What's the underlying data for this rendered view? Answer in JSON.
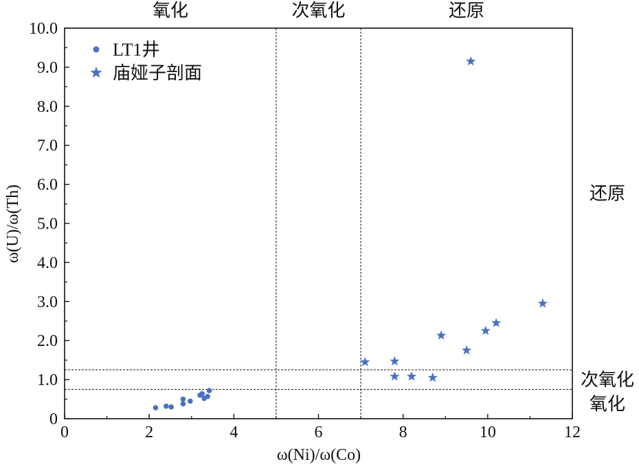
{
  "chart_data": {
    "type": "scatter",
    "xlabel": "ω(Ni)/ω(Co)",
    "ylabel": "ω(U)/ω(Th)",
    "xlim": [
      0,
      12
    ],
    "ylim": [
      0,
      10
    ],
    "x_ticks": [
      0,
      2,
      4,
      6,
      8,
      10,
      12
    ],
    "x_tick_labels": [
      "0",
      "2",
      "4",
      "6",
      "8",
      "10",
      "12"
    ],
    "y_ticks": [
      0,
      1,
      2,
      3,
      4,
      5,
      6,
      7,
      8,
      9,
      10
    ],
    "y_tick_labels": [
      "0",
      "1.0",
      "2.0",
      "3.0",
      "4.0",
      "5.0",
      "6.0",
      "7.0",
      "8.0",
      "9.0",
      "10.0"
    ],
    "grid": false,
    "legend_position": "top-left",
    "colors": {
      "marker": "#4a72c0",
      "axis": "#111111"
    },
    "x_thresholds": [
      5,
      7
    ],
    "y_thresholds": [
      0.75,
      1.25
    ],
    "x_regions": [
      {
        "label": "氧化",
        "from": 0,
        "to": 5
      },
      {
        "label": "次氧化",
        "from": 5,
        "to": 7
      },
      {
        "label": "还原",
        "from": 7,
        "to": 12
      }
    ],
    "y_regions": [
      {
        "label": "还原",
        "from": 1.25,
        "to": 10
      },
      {
        "label": "次氧化",
        "from": 0.75,
        "to": 1.25
      },
      {
        "label": "氧化",
        "from": 0,
        "to": 0.75
      }
    ],
    "series": [
      {
        "name": "LT1井",
        "marker": "circle",
        "points": [
          {
            "x": 2.15,
            "y": 0.28
          },
          {
            "x": 2.4,
            "y": 0.32
          },
          {
            "x": 2.52,
            "y": 0.3
          },
          {
            "x": 2.8,
            "y": 0.38
          },
          {
            "x": 2.8,
            "y": 0.5
          },
          {
            "x": 2.97,
            "y": 0.45
          },
          {
            "x": 3.2,
            "y": 0.6
          },
          {
            "x": 3.25,
            "y": 0.64
          },
          {
            "x": 3.3,
            "y": 0.52
          },
          {
            "x": 3.38,
            "y": 0.57
          },
          {
            "x": 3.42,
            "y": 0.72
          }
        ]
      },
      {
        "name": "庙娅子剖面",
        "marker": "star",
        "points": [
          {
            "x": 7.1,
            "y": 1.45
          },
          {
            "x": 7.8,
            "y": 1.47
          },
          {
            "x": 7.8,
            "y": 1.08
          },
          {
            "x": 8.2,
            "y": 1.08
          },
          {
            "x": 8.7,
            "y": 1.05
          },
          {
            "x": 8.9,
            "y": 2.13
          },
          {
            "x": 9.5,
            "y": 1.75
          },
          {
            "x": 9.6,
            "y": 9.15
          },
          {
            "x": 9.95,
            "y": 2.25
          },
          {
            "x": 10.2,
            "y": 2.45
          },
          {
            "x": 11.3,
            "y": 2.95
          }
        ]
      }
    ]
  }
}
